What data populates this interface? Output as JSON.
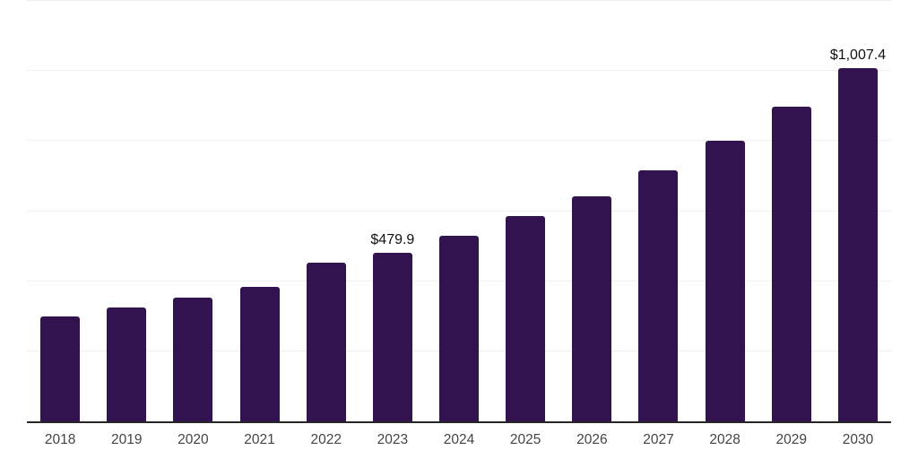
{
  "chart_data": {
    "type": "bar",
    "title": "",
    "xlabel": "",
    "ylabel": "",
    "categories": [
      "2018",
      "2019",
      "2020",
      "2021",
      "2022",
      "2023",
      "2024",
      "2025",
      "2026",
      "2027",
      "2028",
      "2029",
      "2030"
    ],
    "values": [
      299,
      324,
      352,
      384,
      452,
      479.9,
      531,
      586,
      643,
      716,
      801,
      898,
      1007.4
    ],
    "value_labels": [
      {
        "category": "2023",
        "index": 5,
        "text": "$479.9"
      },
      {
        "category": "2030",
        "index": 12,
        "text": "$1,007.4"
      }
    ],
    "ylim": [
      0,
      1200
    ],
    "grid_step": 200,
    "grid": true,
    "legend": false,
    "y_tick_labels_visible": false
  },
  "colors": {
    "background": "#ffffff",
    "bar": "#32134f",
    "gridline": "#efefef",
    "axis_line": "#262626",
    "tick_label": "#444444",
    "value_label": "#111111"
  }
}
